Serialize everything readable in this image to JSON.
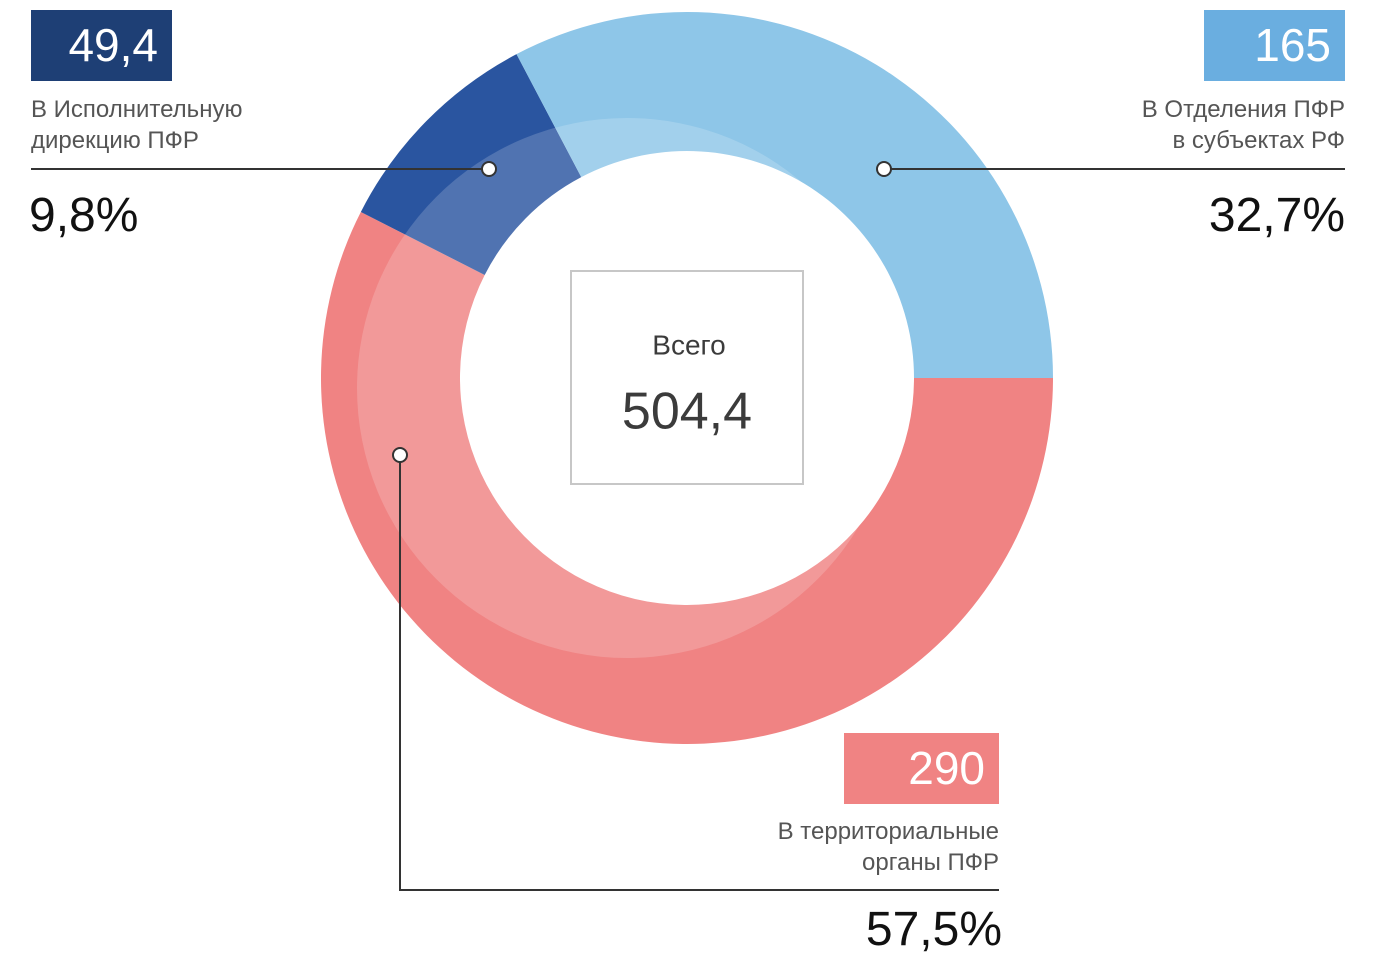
{
  "chart_data": {
    "type": "donut",
    "center_label": "Всего",
    "total": 504.4,
    "total_label": "504,4",
    "categories": [
      "В Исполнительную\nдирекцию ПФР",
      "В Отделения ПФР\nв субъектах РФ",
      "В территориальные\nорганы ПФР"
    ],
    "values": [
      49.4,
      165,
      290
    ],
    "value_labels": [
      "49,4",
      "165",
      "290"
    ],
    "percents": [
      9.8,
      32.7,
      57.5
    ],
    "percent_labels": [
      "9,8%",
      "32,7%",
      "57,5%"
    ],
    "colors": [
      "#2a55a0",
      "#8ec6e8",
      "#f08383"
    ],
    "label_colors": [
      "#1e3f75",
      "#6aaee0",
      "#f08383"
    ]
  }
}
